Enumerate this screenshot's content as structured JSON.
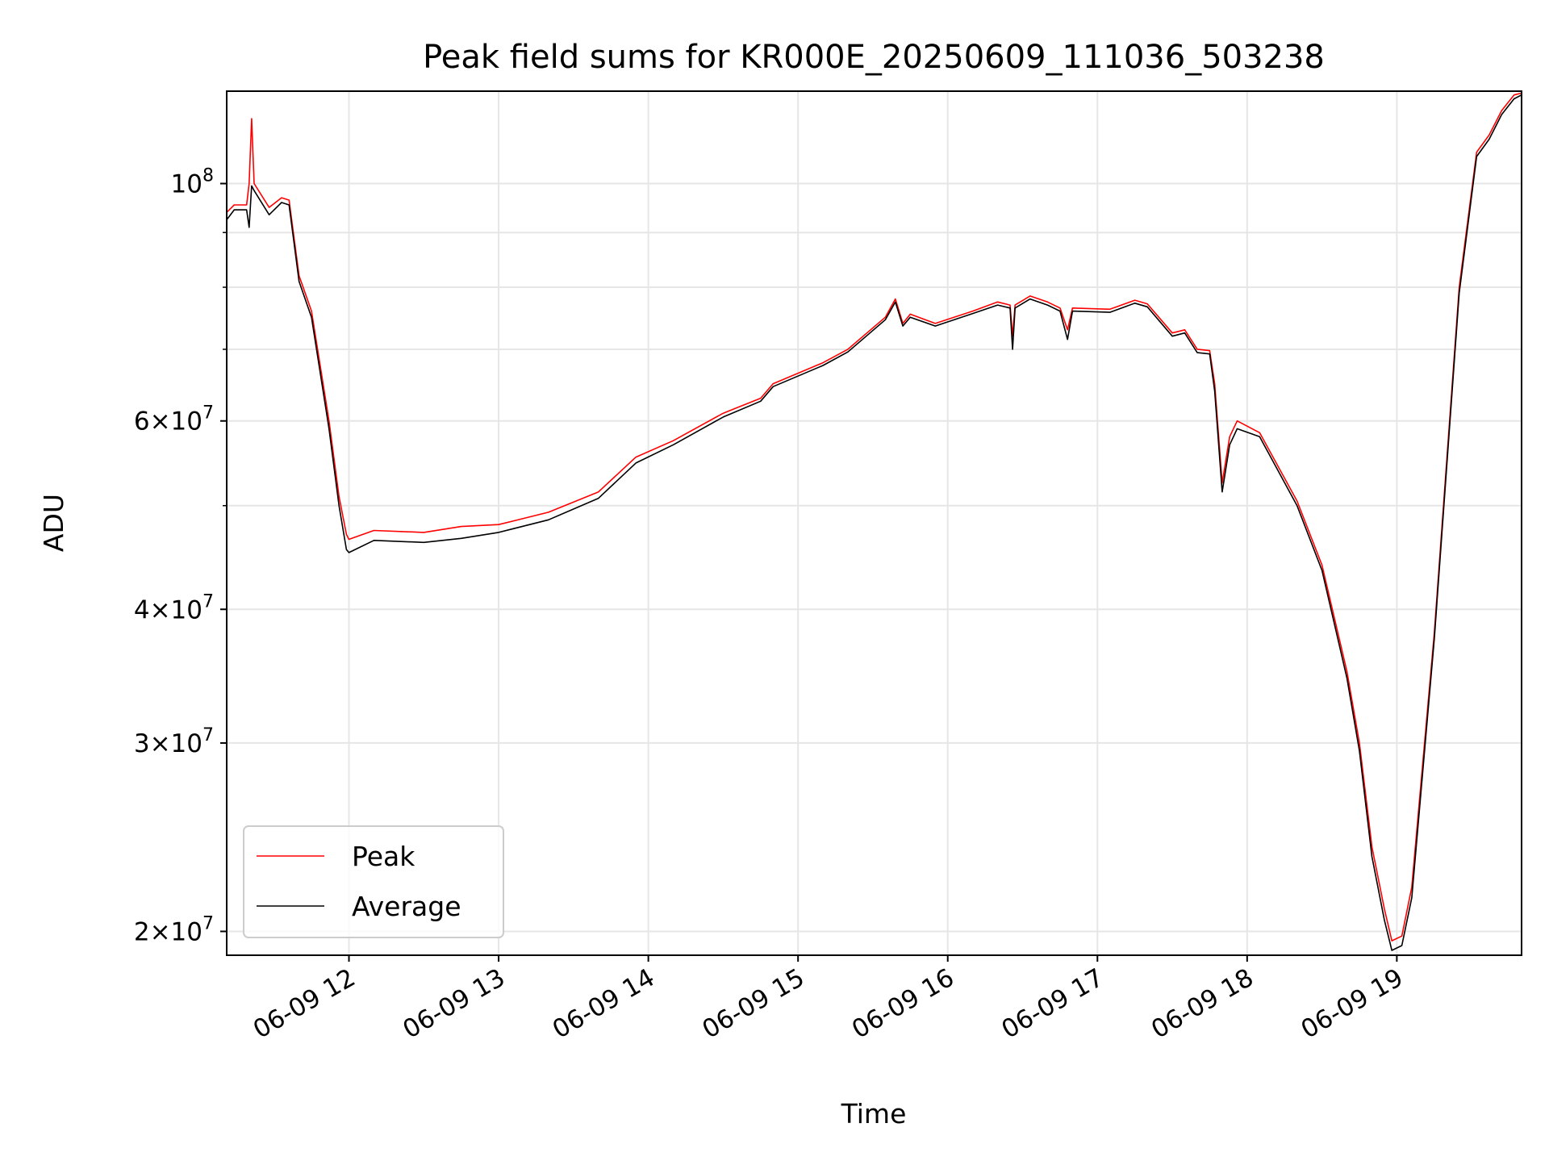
{
  "chart_data": {
    "type": "line",
    "title": "Peak field sums for KR000E_20250609_111036_503238",
    "xlabel": "Time",
    "ylabel": "ADU",
    "y_scale": "log",
    "grid": true,
    "legend_position": "lower-left",
    "x_range": [
      "2025-06-09 11:11",
      "2025-06-09 19:50"
    ],
    "y_range": [
      19000000,
      122000000
    ],
    "x_ticks": [
      {
        "label": "06-09 12",
        "value": "2025-06-09 12:00"
      },
      {
        "label": "06-09 13",
        "value": "2025-06-09 13:00"
      },
      {
        "label": "06-09 14",
        "value": "2025-06-09 14:00"
      },
      {
        "label": "06-09 15",
        "value": "2025-06-09 15:00"
      },
      {
        "label": "06-09 16",
        "value": "2025-06-09 16:00"
      },
      {
        "label": "06-09 17",
        "value": "2025-06-09 17:00"
      },
      {
        "label": "06-09 18",
        "value": "2025-06-09 18:00"
      },
      {
        "label": "06-09 19",
        "value": "2025-06-09 19:00"
      }
    ],
    "y_ticks": [
      {
        "base": "2",
        "exp": "7",
        "value": 20000000
      },
      {
        "base": "3",
        "exp": "7",
        "value": 30000000
      },
      {
        "base": "4",
        "exp": "7",
        "value": 40000000
      },
      {
        "base": "6",
        "exp": "7",
        "value": 60000000
      },
      {
        "base": "",
        "exp": "8",
        "value": 100000000
      }
    ],
    "series": [
      {
        "name": "Peak",
        "color": "#ff0000",
        "points": [
          [
            "2025-06-09 11:11",
            94000000
          ],
          [
            "2025-06-09 11:14",
            95500000
          ],
          [
            "2025-06-09 11:19",
            95500000
          ],
          [
            "2025-06-09 11:20",
            100000000
          ],
          [
            "2025-06-09 11:21",
            115000000
          ],
          [
            "2025-06-09 11:22",
            100000000
          ],
          [
            "2025-06-09 11:28",
            95000000
          ],
          [
            "2025-06-09 11:33",
            97000000
          ],
          [
            "2025-06-09 11:36",
            96500000
          ],
          [
            "2025-06-09 11:40",
            82000000
          ],
          [
            "2025-06-09 11:45",
            76000000
          ],
          [
            "2025-06-09 11:52",
            60000000
          ],
          [
            "2025-06-09 11:56",
            51000000
          ],
          [
            "2025-06-09 11:59",
            47000000
          ],
          [
            "2025-06-09 12:00",
            46500000
          ],
          [
            "2025-06-09 12:10",
            47400000
          ],
          [
            "2025-06-09 12:30",
            47200000
          ],
          [
            "2025-06-09 12:45",
            47800000
          ],
          [
            "2025-06-09 13:00",
            48000000
          ],
          [
            "2025-06-09 13:20",
            49300000
          ],
          [
            "2025-06-09 13:40",
            51500000
          ],
          [
            "2025-06-09 13:55",
            55500000
          ],
          [
            "2025-06-09 14:10",
            57500000
          ],
          [
            "2025-06-09 14:30",
            61000000
          ],
          [
            "2025-06-09 14:45",
            63000000
          ],
          [
            "2025-06-09 14:50",
            65000000
          ],
          [
            "2025-06-09 15:10",
            68000000
          ],
          [
            "2025-06-09 15:20",
            70000000
          ],
          [
            "2025-06-09 15:35",
            75000000
          ],
          [
            "2025-06-09 15:39",
            78000000
          ],
          [
            "2025-06-09 15:42",
            74000000
          ],
          [
            "2025-06-09 15:45",
            75500000
          ],
          [
            "2025-06-09 15:55",
            74000000
          ],
          [
            "2025-06-09 16:10",
            76000000
          ],
          [
            "2025-06-09 16:20",
            77500000
          ],
          [
            "2025-06-09 16:25",
            77000000
          ],
          [
            "2025-06-09 16:26",
            72000000
          ],
          [
            "2025-06-09 16:27",
            77000000
          ],
          [
            "2025-06-09 16:33",
            78500000
          ],
          [
            "2025-06-09 16:40",
            77500000
          ],
          [
            "2025-06-09 16:45",
            76500000
          ],
          [
            "2025-06-09 16:48",
            73000000
          ],
          [
            "2025-06-09 16:50",
            76500000
          ],
          [
            "2025-06-09 17:05",
            76300000
          ],
          [
            "2025-06-09 17:15",
            77800000
          ],
          [
            "2025-06-09 17:20",
            77200000
          ],
          [
            "2025-06-09 17:30",
            72500000
          ],
          [
            "2025-06-09 17:35",
            73000000
          ],
          [
            "2025-06-09 17:40",
            70000000
          ],
          [
            "2025-06-09 17:45",
            69800000
          ],
          [
            "2025-06-09 17:47",
            65000000
          ],
          [
            "2025-06-09 17:50",
            52500000
          ],
          [
            "2025-06-09 17:53",
            58000000
          ],
          [
            "2025-06-09 17:56",
            60000000
          ],
          [
            "2025-06-09 18:05",
            58500000
          ],
          [
            "2025-06-09 18:20",
            50500000
          ],
          [
            "2025-06-09 18:30",
            44000000
          ],
          [
            "2025-06-09 18:40",
            35000000
          ],
          [
            "2025-06-09 18:45",
            30000000
          ],
          [
            "2025-06-09 18:50",
            24000000
          ],
          [
            "2025-06-09 18:55",
            21000000
          ],
          [
            "2025-06-09 18:58",
            19600000
          ],
          [
            "2025-06-09 19:02",
            19800000
          ],
          [
            "2025-06-09 19:06",
            22000000
          ],
          [
            "2025-06-09 19:15",
            38000000
          ],
          [
            "2025-06-09 19:25",
            80000000
          ],
          [
            "2025-06-09 19:32",
            107000000
          ],
          [
            "2025-06-09 19:37",
            111000000
          ],
          [
            "2025-06-09 19:42",
            117000000
          ],
          [
            "2025-06-09 19:47",
            121000000
          ],
          [
            "2025-06-09 19:50",
            121500000
          ]
        ]
      },
      {
        "name": "Average",
        "color": "#000000",
        "points": [
          [
            "2025-06-09 11:11",
            92500000
          ],
          [
            "2025-06-09 11:14",
            94500000
          ],
          [
            "2025-06-09 11:19",
            94500000
          ],
          [
            "2025-06-09 11:20",
            91000000
          ],
          [
            "2025-06-09 11:21",
            99500000
          ],
          [
            "2025-06-09 11:22",
            98500000
          ],
          [
            "2025-06-09 11:28",
            93500000
          ],
          [
            "2025-06-09 11:33",
            96000000
          ],
          [
            "2025-06-09 11:36",
            95500000
          ],
          [
            "2025-06-09 11:40",
            81000000
          ],
          [
            "2025-06-09 11:45",
            75000000
          ],
          [
            "2025-06-09 11:52",
            59000000
          ],
          [
            "2025-06-09 11:56",
            50000000
          ],
          [
            "2025-06-09 11:59",
            45500000
          ],
          [
            "2025-06-09 12:00",
            45200000
          ],
          [
            "2025-06-09 12:10",
            46400000
          ],
          [
            "2025-06-09 12:30",
            46200000
          ],
          [
            "2025-06-09 12:45",
            46600000
          ],
          [
            "2025-06-09 13:00",
            47200000
          ],
          [
            "2025-06-09 13:20",
            48500000
          ],
          [
            "2025-06-09 13:40",
            50800000
          ],
          [
            "2025-06-09 13:55",
            54800000
          ],
          [
            "2025-06-09 14:10",
            57000000
          ],
          [
            "2025-06-09 14:30",
            60500000
          ],
          [
            "2025-06-09 14:45",
            62600000
          ],
          [
            "2025-06-09 14:50",
            64600000
          ],
          [
            "2025-06-09 15:10",
            67600000
          ],
          [
            "2025-06-09 15:20",
            69600000
          ],
          [
            "2025-06-09 15:35",
            74600000
          ],
          [
            "2025-06-09 15:39",
            77500000
          ],
          [
            "2025-06-09 15:42",
            73600000
          ],
          [
            "2025-06-09 15:45",
            75000000
          ],
          [
            "2025-06-09 15:55",
            73600000
          ],
          [
            "2025-06-09 16:10",
            75600000
          ],
          [
            "2025-06-09 16:20",
            77000000
          ],
          [
            "2025-06-09 16:25",
            76500000
          ],
          [
            "2025-06-09 16:26",
            70000000
          ],
          [
            "2025-06-09 16:27",
            76500000
          ],
          [
            "2025-06-09 16:33",
            78000000
          ],
          [
            "2025-06-09 16:40",
            77000000
          ],
          [
            "2025-06-09 16:45",
            76000000
          ],
          [
            "2025-06-09 16:48",
            71500000
          ],
          [
            "2025-06-09 16:50",
            76000000
          ],
          [
            "2025-06-09 17:05",
            75800000
          ],
          [
            "2025-06-09 17:15",
            77300000
          ],
          [
            "2025-06-09 17:20",
            76700000
          ],
          [
            "2025-06-09 17:30",
            72000000
          ],
          [
            "2025-06-09 17:35",
            72500000
          ],
          [
            "2025-06-09 17:40",
            69500000
          ],
          [
            "2025-06-09 17:45",
            69300000
          ],
          [
            "2025-06-09 17:47",
            64000000
          ],
          [
            "2025-06-09 17:50",
            51500000
          ],
          [
            "2025-06-09 17:53",
            57000000
          ],
          [
            "2025-06-09 17:56",
            59000000
          ],
          [
            "2025-06-09 18:05",
            58000000
          ],
          [
            "2025-06-09 18:20",
            50000000
          ],
          [
            "2025-06-09 18:30",
            43500000
          ],
          [
            "2025-06-09 18:40",
            34500000
          ],
          [
            "2025-06-09 18:45",
            29500000
          ],
          [
            "2025-06-09 18:50",
            23500000
          ],
          [
            "2025-06-09 18:55",
            20500000
          ],
          [
            "2025-06-09 18:58",
            19200000
          ],
          [
            "2025-06-09 19:02",
            19400000
          ],
          [
            "2025-06-09 19:06",
            21500000
          ],
          [
            "2025-06-09 19:15",
            37500000
          ],
          [
            "2025-06-09 19:25",
            79000000
          ],
          [
            "2025-06-09 19:32",
            106000000
          ],
          [
            "2025-06-09 19:37",
            110000000
          ],
          [
            "2025-06-09 19:42",
            116000000
          ],
          [
            "2025-06-09 19:47",
            120000000
          ],
          [
            "2025-06-09 19:50",
            121000000
          ]
        ]
      }
    ]
  }
}
